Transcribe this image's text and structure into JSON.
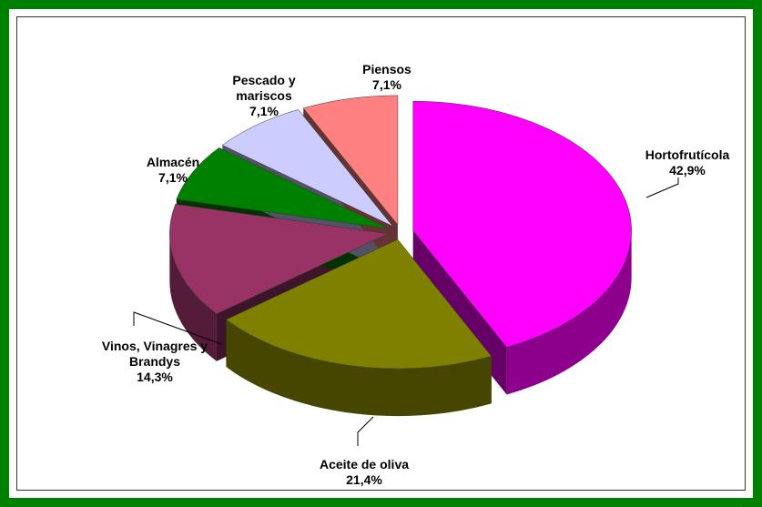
{
  "chart_data": {
    "type": "pie3d",
    "categories": [
      "Hortofrutícola",
      "Aceite de oliva",
      "Vinos, Vinagres y Brandys",
      "Almacén",
      "Pescado y mariscos",
      "Piensos"
    ],
    "values": [
      42.9,
      21.4,
      14.3,
      7.1,
      7.1,
      7.1
    ],
    "value_labels": [
      "42,9%",
      "21,4%",
      "14,3%",
      "7,1%",
      "7,1%",
      "7,1%"
    ],
    "colors": [
      "#ff00ff",
      "#808000",
      "#993366",
      "#008000",
      "#ccccff",
      "#ff8080"
    ]
  }
}
